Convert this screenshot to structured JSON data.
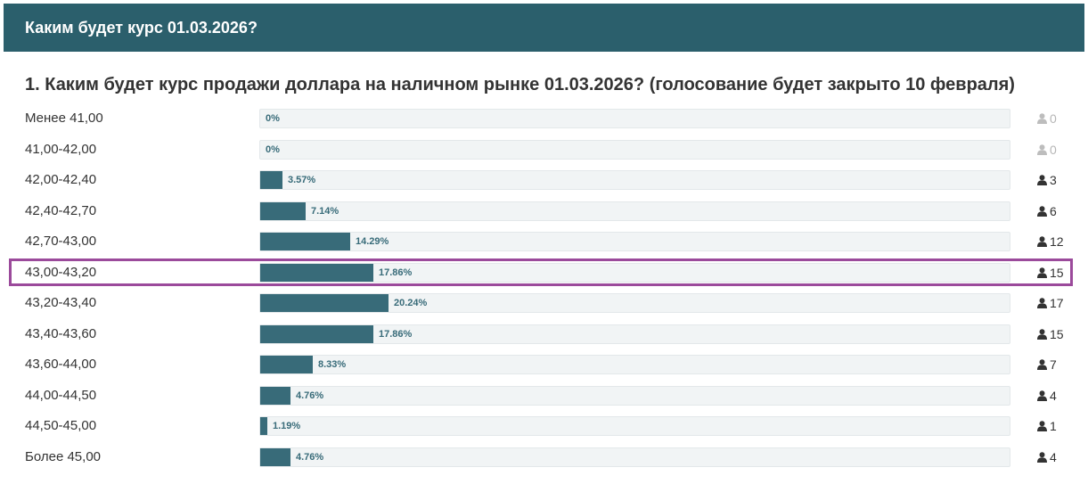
{
  "header": {
    "title": "Каким будет курс 01.03.2026?"
  },
  "question": {
    "title": "1. Каким будет курс продажи доллара на наличном рынке 01.03.2026? (голосование будет закрыто 10 февраля)"
  },
  "colors": {
    "header_bg": "#2b5f6c",
    "bar_fill": "#386b79",
    "highlight_border": "#9b4a9b"
  },
  "options": [
    {
      "label": "Менее 41,00",
      "percent_label": "0%",
      "percent": 0,
      "votes": "0"
    },
    {
      "label": "41,00-42,00",
      "percent_label": "0%",
      "percent": 0,
      "votes": "0"
    },
    {
      "label": "42,00-42,40",
      "percent_label": "3.57%",
      "percent": 3.57,
      "votes": "3"
    },
    {
      "label": "42,40-42,70",
      "percent_label": "7.14%",
      "percent": 7.14,
      "votes": "6"
    },
    {
      "label": "42,70-43,00",
      "percent_label": "14.29%",
      "percent": 14.29,
      "votes": "12"
    },
    {
      "label": "43,00-43,20",
      "percent_label": "17.86%",
      "percent": 17.86,
      "votes": "15",
      "highlighted": true
    },
    {
      "label": "43,20-43,40",
      "percent_label": "20.24%",
      "percent": 20.24,
      "votes": "17"
    },
    {
      "label": "43,40-43,60",
      "percent_label": "17.86%",
      "percent": 17.86,
      "votes": "15"
    },
    {
      "label": "43,60-44,00",
      "percent_label": "8.33%",
      "percent": 8.33,
      "votes": "7"
    },
    {
      "label": "44,00-44,50",
      "percent_label": "4.76%",
      "percent": 4.76,
      "votes": "4"
    },
    {
      "label": "44,50-45,00",
      "percent_label": "1.19%",
      "percent": 1.19,
      "votes": "1"
    },
    {
      "label": "Более 45,00",
      "percent_label": "4.76%",
      "percent": 4.76,
      "votes": "4"
    }
  ],
  "icons": {
    "votes": "user-icon"
  }
}
